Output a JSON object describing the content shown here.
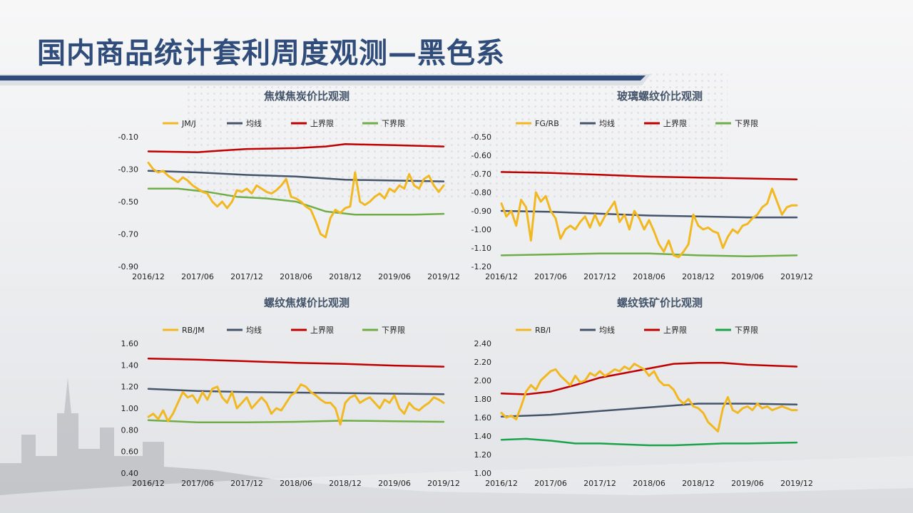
{
  "page": {
    "title": "国内商品统计套利周度观测—黑色系"
  },
  "colors": {
    "ratio": "#f2b822",
    "mean": "#44546a",
    "upper": "#c00000",
    "lower": "#70ad47",
    "lower_alt": "#1aa34a",
    "title": "#2f4c7a"
  },
  "chart_data": [
    {
      "type": "line",
      "title": "焦煤焦炭价比观测",
      "xticks": [
        "2016/12",
        "2017/06",
        "2017/12",
        "2018/06",
        "2018/12",
        "2019/06",
        "2019/12"
      ],
      "ylim": [
        -0.9,
        -0.1
      ],
      "yticks": [
        -0.1,
        -0.3,
        -0.5,
        -0.7,
        -0.9
      ],
      "ytick_labels": [
        "-0.10",
        "-0.30",
        "-0.50",
        "-0.70",
        "-0.90"
      ],
      "legend": [
        "JM/J",
        "均线",
        "上界限",
        "下界限"
      ],
      "series": [
        {
          "name": "JM/J",
          "role": "ratio",
          "x": [
            0,
            0.05,
            0.1,
            0.15,
            0.2,
            0.25,
            0.3,
            0.35,
            0.4,
            0.45,
            0.5,
            0.55,
            0.6,
            0.65,
            0.7,
            0.75,
            0.8,
            0.85,
            0.9,
            0.95,
            1.0,
            1.05,
            1.1,
            1.15,
            1.2,
            1.25,
            1.3,
            1.35,
            1.4,
            1.45,
            1.5,
            1.55,
            1.6,
            1.65,
            1.7,
            1.75,
            1.8,
            1.85,
            1.9,
            1.95,
            2.0,
            2.05,
            2.1,
            2.15,
            2.2,
            2.25,
            2.3,
            2.35,
            2.4,
            2.45,
            2.5,
            2.55,
            2.6,
            2.65,
            2.7,
            2.75,
            2.8,
            2.85,
            2.9,
            2.95,
            3.0
          ],
          "values": [
            -0.26,
            -0.3,
            -0.32,
            -0.31,
            -0.34,
            -0.36,
            -0.38,
            -0.35,
            -0.37,
            -0.4,
            -0.42,
            -0.44,
            -0.45,
            -0.5,
            -0.53,
            -0.5,
            -0.54,
            -0.5,
            -0.43,
            -0.44,
            -0.42,
            -0.45,
            -0.4,
            -0.42,
            -0.44,
            -0.45,
            -0.43,
            -0.4,
            -0.36,
            -0.47,
            -0.48,
            -0.5,
            -0.53,
            -0.55,
            -0.62,
            -0.7,
            -0.72,
            -0.6,
            -0.55,
            -0.57,
            -0.54,
            -0.53,
            -0.32,
            -0.5,
            -0.52,
            -0.5,
            -0.47,
            -0.45,
            -0.48,
            -0.42,
            -0.44,
            -0.4,
            -0.42,
            -0.33,
            -0.4,
            -0.42,
            -0.36,
            -0.34,
            -0.4,
            -0.44,
            -0.4
          ]
        },
        {
          "name": "均线",
          "role": "mean",
          "x": [
            0,
            0.5,
            1.0,
            1.5,
            2.0,
            2.5,
            3.0
          ],
          "values": [
            -0.31,
            -0.32,
            -0.335,
            -0.345,
            -0.365,
            -0.37,
            -0.375
          ]
        },
        {
          "name": "上界限",
          "role": "upper",
          "x": [
            0,
            0.5,
            0.75,
            1.0,
            1.5,
            1.8,
            2.0,
            2.2,
            2.5,
            3.0
          ],
          "values": [
            -0.19,
            -0.195,
            -0.185,
            -0.175,
            -0.17,
            -0.16,
            -0.145,
            -0.148,
            -0.152,
            -0.16
          ]
        },
        {
          "name": "下界限",
          "role": "lower",
          "x": [
            0,
            0.3,
            0.6,
            0.9,
            1.2,
            1.5,
            1.8,
            2.1,
            2.4,
            2.7,
            3.0
          ],
          "values": [
            -0.42,
            -0.42,
            -0.44,
            -0.47,
            -0.48,
            -0.5,
            -0.56,
            -0.58,
            -0.58,
            -0.58,
            -0.575
          ]
        }
      ]
    },
    {
      "type": "line",
      "title": "玻璃螺纹价比观测",
      "xticks": [
        "2016/12",
        "2017/06",
        "2017/12",
        "2018/06",
        "2018/12",
        "2019/06",
        "2019/12"
      ],
      "ylim": [
        -1.2,
        -0.5
      ],
      "yticks": [
        -0.5,
        -0.6,
        -0.7,
        -0.8,
        -0.9,
        -1.0,
        -1.1,
        -1.2
      ],
      "ytick_labels": [
        "-0.50",
        "-0.60",
        "-0.70",
        "-0.80",
        "-0.90",
        "-1.00",
        "-1.10",
        "-1.20"
      ],
      "legend": [
        "FG/RB",
        "均线",
        "上界限",
        "下界限"
      ],
      "series": [
        {
          "name": "FG/RB",
          "role": "ratio",
          "x": [
            0,
            0.05,
            0.1,
            0.15,
            0.2,
            0.25,
            0.3,
            0.35,
            0.4,
            0.45,
            0.5,
            0.55,
            0.6,
            0.65,
            0.7,
            0.75,
            0.8,
            0.85,
            0.9,
            0.95,
            1.0,
            1.05,
            1.1,
            1.15,
            1.2,
            1.25,
            1.3,
            1.35,
            1.4,
            1.45,
            1.5,
            1.55,
            1.6,
            1.65,
            1.7,
            1.75,
            1.8,
            1.85,
            1.9,
            1.95,
            2.0,
            2.05,
            2.1,
            2.15,
            2.2,
            2.25,
            2.3,
            2.35,
            2.4,
            2.45,
            2.5,
            2.55,
            2.6,
            2.65,
            2.7,
            2.75,
            2.8,
            2.85,
            2.9,
            2.95,
            3.0
          ],
          "values": [
            -0.86,
            -0.93,
            -0.9,
            -0.98,
            -0.84,
            -0.88,
            -1.06,
            -0.8,
            -0.85,
            -0.82,
            -0.9,
            -0.94,
            -1.05,
            -1.0,
            -0.98,
            -1.0,
            -0.96,
            -0.93,
            -0.99,
            -0.92,
            -0.98,
            -0.93,
            -0.89,
            -0.85,
            -0.96,
            -0.92,
            -1.0,
            -0.9,
            -0.94,
            -1.0,
            -0.95,
            -1.01,
            -1.08,
            -1.12,
            -1.06,
            -1.14,
            -1.15,
            -1.12,
            -1.08,
            -0.92,
            -0.98,
            -1.0,
            -0.99,
            -1.01,
            -1.02,
            -1.1,
            -1.04,
            -1.0,
            -1.02,
            -0.98,
            -0.97,
            -0.94,
            -0.92,
            -0.88,
            -0.86,
            -0.78,
            -0.85,
            -0.92,
            -0.88,
            -0.87,
            -0.87
          ]
        },
        {
          "name": "均线",
          "role": "mean",
          "x": [
            0,
            0.5,
            1.0,
            1.5,
            2.0,
            2.5,
            3.0
          ],
          "values": [
            -0.9,
            -0.905,
            -0.915,
            -0.925,
            -0.93,
            -0.935,
            -0.935
          ]
        },
        {
          "name": "上界限",
          "role": "upper",
          "x": [
            0,
            0.5,
            1.0,
            1.5,
            2.0,
            2.5,
            3.0
          ],
          "values": [
            -0.69,
            -0.695,
            -0.705,
            -0.715,
            -0.72,
            -0.725,
            -0.73
          ]
        },
        {
          "name": "下界限",
          "role": "lower",
          "x": [
            0,
            0.5,
            1.0,
            1.5,
            2.0,
            2.5,
            3.0
          ],
          "values": [
            -1.14,
            -1.135,
            -1.13,
            -1.13,
            -1.14,
            -1.145,
            -1.14
          ]
        }
      ]
    },
    {
      "type": "line",
      "title": "螺纹焦煤价比观测",
      "xticks": [
        "2016/12",
        "2017/06",
        "2017/12",
        "2018/06",
        "2018/12",
        "2019/06",
        "2019/12"
      ],
      "ylim": [
        0.4,
        1.6
      ],
      "yticks": [
        1.6,
        1.4,
        1.2,
        1.0,
        0.8,
        0.6,
        0.4
      ],
      "ytick_labels": [
        "1.60",
        "1.40",
        "1.20",
        "1.00",
        "0.80",
        "0.60",
        "0.40"
      ],
      "legend": [
        "RB/JM",
        "均线",
        "上界限",
        "下界限"
      ],
      "series": [
        {
          "name": "RB/JM",
          "role": "ratio",
          "x": [
            0,
            0.05,
            0.1,
            0.15,
            0.2,
            0.25,
            0.3,
            0.35,
            0.4,
            0.45,
            0.5,
            0.55,
            0.6,
            0.65,
            0.7,
            0.75,
            0.8,
            0.85,
            0.9,
            0.95,
            1.0,
            1.05,
            1.1,
            1.15,
            1.2,
            1.25,
            1.3,
            1.35,
            1.4,
            1.45,
            1.5,
            1.55,
            1.6,
            1.65,
            1.7,
            1.75,
            1.8,
            1.85,
            1.9,
            1.95,
            2.0,
            2.05,
            2.1,
            2.15,
            2.2,
            2.25,
            2.3,
            2.35,
            2.4,
            2.45,
            2.5,
            2.55,
            2.6,
            2.65,
            2.7,
            2.75,
            2.8,
            2.85,
            2.9,
            2.95,
            3.0
          ],
          "values": [
            0.92,
            0.95,
            0.9,
            0.98,
            0.88,
            0.95,
            1.05,
            1.15,
            1.1,
            1.12,
            1.05,
            1.15,
            1.08,
            1.18,
            1.2,
            1.1,
            1.05,
            1.15,
            1.0,
            1.05,
            1.1,
            1.0,
            1.05,
            1.1,
            1.05,
            0.95,
            1.0,
            0.98,
            1.05,
            1.12,
            1.15,
            1.22,
            1.2,
            1.15,
            1.12,
            1.08,
            1.05,
            1.05,
            1.0,
            0.85,
            1.05,
            1.1,
            1.12,
            1.05,
            1.08,
            1.1,
            1.05,
            1.0,
            1.08,
            1.05,
            1.12,
            1.0,
            0.95,
            1.05,
            1.0,
            0.98,
            1.02,
            1.05,
            1.1,
            1.08,
            1.05
          ]
        },
        {
          "name": "均线",
          "role": "mean",
          "x": [
            0,
            0.5,
            1.0,
            1.5,
            2.0,
            2.5,
            3.0
          ],
          "values": [
            1.18,
            1.16,
            1.15,
            1.145,
            1.14,
            1.135,
            1.13
          ]
        },
        {
          "name": "上界限",
          "role": "upper",
          "x": [
            0,
            0.5,
            1.0,
            1.5,
            2.0,
            2.5,
            3.0
          ],
          "values": [
            1.46,
            1.45,
            1.435,
            1.42,
            1.41,
            1.395,
            1.385
          ]
        },
        {
          "name": "下界限",
          "role": "lower",
          "x": [
            0,
            0.5,
            1.0,
            1.5,
            2.0,
            2.5,
            3.0
          ],
          "values": [
            0.89,
            0.87,
            0.87,
            0.875,
            0.885,
            0.88,
            0.875
          ]
        }
      ]
    },
    {
      "type": "line",
      "title": "螺纹铁矿价比观测",
      "xticks": [
        "2016/12",
        "2017/06",
        "2017/12",
        "2018/06",
        "2018/12",
        "2019/06",
        "2019/12"
      ],
      "ylim": [
        1.0,
        2.4
      ],
      "yticks": [
        2.4,
        2.2,
        2.0,
        1.8,
        1.6,
        1.4,
        1.2,
        1.0
      ],
      "ytick_labels": [
        "2.40",
        "2.20",
        "2.00",
        "1.80",
        "1.60",
        "1.40",
        "1.20",
        "1.00"
      ],
      "legend": [
        "RB/I",
        "均线",
        "上界限",
        "下界限"
      ],
      "series": [
        {
          "name": "RB/I",
          "role": "ratio",
          "x": [
            0,
            0.05,
            0.1,
            0.15,
            0.2,
            0.25,
            0.3,
            0.35,
            0.4,
            0.45,
            0.5,
            0.55,
            0.6,
            0.65,
            0.7,
            0.75,
            0.8,
            0.85,
            0.9,
            0.95,
            1.0,
            1.05,
            1.1,
            1.15,
            1.2,
            1.25,
            1.3,
            1.35,
            1.4,
            1.45,
            1.5,
            1.55,
            1.6,
            1.65,
            1.7,
            1.75,
            1.8,
            1.85,
            1.9,
            1.95,
            2.0,
            2.05,
            2.1,
            2.15,
            2.2,
            2.25,
            2.3,
            2.35,
            2.4,
            2.45,
            2.5,
            2.55,
            2.6,
            2.65,
            2.7,
            2.75,
            2.8,
            2.85,
            2.9,
            2.95,
            3.0
          ],
          "values": [
            1.65,
            1.6,
            1.62,
            1.58,
            1.72,
            1.88,
            1.95,
            1.9,
            2.0,
            2.05,
            2.1,
            2.12,
            2.05,
            2.0,
            1.95,
            2.05,
            1.98,
            2.0,
            2.08,
            2.05,
            2.1,
            2.05,
            2.08,
            2.12,
            2.1,
            2.15,
            2.12,
            2.18,
            2.15,
            2.12,
            2.05,
            2.1,
            2.0,
            1.95,
            1.95,
            1.9,
            1.8,
            1.75,
            1.8,
            1.72,
            1.7,
            1.65,
            1.55,
            1.5,
            1.45,
            1.7,
            1.82,
            1.68,
            1.65,
            1.7,
            1.72,
            1.68,
            1.75,
            1.7,
            1.72,
            1.68,
            1.7,
            1.72,
            1.7,
            1.68,
            1.68
          ]
        },
        {
          "name": "均线",
          "role": "mean",
          "x": [
            0,
            0.5,
            1.0,
            1.5,
            2.0,
            2.5,
            3.0
          ],
          "values": [
            1.61,
            1.63,
            1.67,
            1.71,
            1.75,
            1.75,
            1.74
          ]
        },
        {
          "name": "上界限",
          "role": "upper",
          "x": [
            0,
            0.25,
            0.5,
            0.75,
            1.0,
            1.25,
            1.5,
            1.75,
            2.0,
            2.25,
            2.5,
            2.75,
            3.0
          ],
          "values": [
            1.86,
            1.85,
            1.88,
            1.95,
            2.03,
            2.08,
            2.13,
            2.18,
            2.19,
            2.19,
            2.17,
            2.16,
            2.15
          ]
        },
        {
          "name": "下界限",
          "role": "lower_alt",
          "x": [
            0,
            0.25,
            0.5,
            0.75,
            1.0,
            1.25,
            1.5,
            1.75,
            2.0,
            2.25,
            2.5,
            2.75,
            3.0
          ],
          "values": [
            1.36,
            1.37,
            1.35,
            1.32,
            1.32,
            1.31,
            1.3,
            1.3,
            1.31,
            1.32,
            1.32,
            1.325,
            1.33
          ]
        }
      ]
    }
  ]
}
